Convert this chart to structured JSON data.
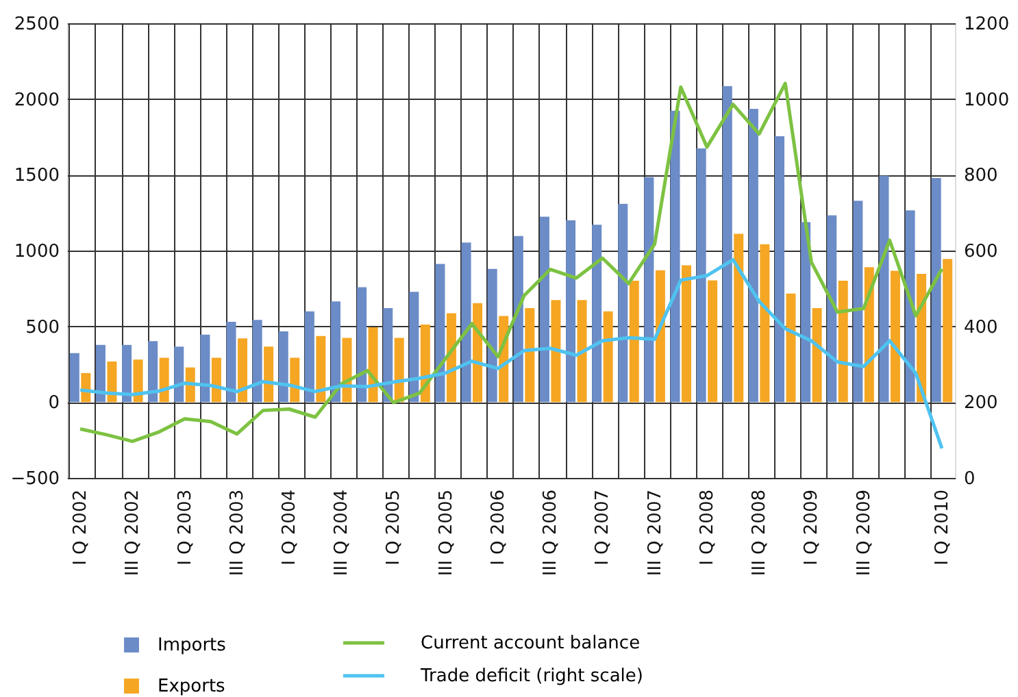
{
  "chart_data": {
    "type": "bar",
    "categories": [
      "I Q 2002",
      null,
      "III Q 2002",
      null,
      "I Q 2003",
      null,
      "III Q 2003",
      null,
      "I Q 2004",
      null,
      "III Q 2004",
      null,
      "I Q 2005",
      null,
      "III Q 2005",
      null,
      "I Q 2006",
      null,
      "III Q 2006",
      null,
      "I Q 2007",
      null,
      "III Q 2007",
      null,
      "I Q 2008",
      null,
      "III Q 2008",
      null,
      "I Q 2009",
      null,
      "III Q 2009",
      null,
      null,
      "I Q 2010"
    ],
    "series": [
      {
        "name": "Imports",
        "color": "#6b8cc7",
        "values": [
          323,
          378,
          378,
          403,
          366,
          445,
          530,
          543,
          467,
          599,
          665,
          758,
          620,
          728,
          912,
          1053,
          879,
          1096,
          1224,
          1200,
          1170,
          1308,
          1485,
          1923,
          1674,
          2085,
          1935,
          1755,
          1188,
          1233,
          1329,
          1494,
          1266,
          1479
        ]
      },
      {
        "name": "Exports",
        "color": "#f5a623",
        "values": [
          192,
          268,
          281,
          293,
          229,
          293,
          421,
          366,
          293,
          436,
          424,
          494,
          424,
          512,
          587,
          653,
          569,
          620,
          674,
          674,
          599,
          801,
          870,
          903,
          804,
          1111,
          1042,
          717,
          621,
          801,
          891,
          867,
          846,
          945
        ]
      },
      {
        "name": "Current account balance",
        "type": "line",
        "color": "#7dc242",
        "values": [
          -177,
          -215,
          -259,
          -198,
          -110,
          -128,
          -210,
          -55,
          -46,
          -99,
          120,
          208,
          -3,
          60,
          290,
          518,
          300,
          703,
          876,
          819,
          950,
          783,
          1044,
          2079,
          1683,
          1965,
          1770,
          2103,
          924,
          594,
          618,
          1068,
          570,
          879
        ]
      },
      {
        "name": "Trade deficit (right scale)",
        "type": "line",
        "axis": "y2",
        "color": "#4fc3f0",
        "values": [
          232,
          224,
          220,
          229,
          250,
          244,
          228,
          254,
          245,
          228,
          243,
          241,
          253,
          263,
          277,
          308,
          289,
          336,
          342,
          324,
          362,
          370,
          366,
          522,
          534,
          576,
          466,
          394,
          362,
          306,
          294,
          362,
          276,
          78
        ]
      }
    ],
    "ylim": [
      -500,
      2500
    ],
    "yticks": [
      -500,
      0,
      500,
      1000,
      1500,
      2000,
      2500
    ],
    "y2lim": [
      0,
      1200
    ],
    "y2ticks": [
      0,
      200,
      400,
      600,
      800,
      1000,
      1200
    ],
    "grid": true,
    "legend": "bottom",
    "marker": "none",
    "line_style": "solid"
  }
}
